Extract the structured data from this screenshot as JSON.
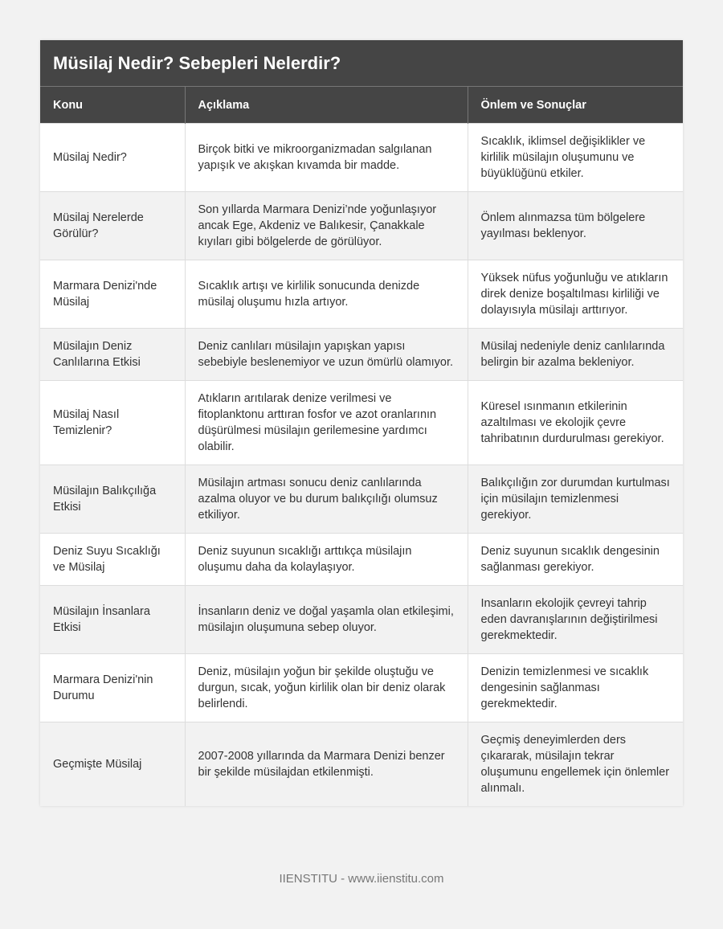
{
  "title": "Müsilaj Nedir? Sebepleri Nelerdir?",
  "columns": [
    "Konu",
    "Açıklama",
    "Önlem ve Sonuçlar"
  ],
  "rows": [
    [
      "Müsilaj Nedir?",
      "Birçok bitki ve mikroorganizmadan salgılanan yapışık ve akışkan kıvamda bir madde.",
      "Sıcaklık, iklimsel değişiklikler ve kirlilik müsilajın oluşumunu ve büyüklüğünü etkiler."
    ],
    [
      "Müsilaj Nerelerde Görülür?",
      "Son yıllarda Marmara Denizi’nde yoğunlaşıyor ancak Ege, Akdeniz ve Balıkesir, Çanakkale kıyıları gibi bölgelerde de görülüyor.",
      "Önlem alınmazsa tüm bölgelere yayılması beklenyor."
    ],
    [
      "Marmara Denizi'nde Müsilaj",
      "Sıcaklık artışı ve kirlilik sonucunda denizde müsilaj oluşumu hızla artıyor.",
      "Yüksek nüfus yoğunluğu ve atıkların direk denize boşaltılması kirliliği ve dolayısıyla müsilajı arttırıyor."
    ],
    [
      "Müsilajın Deniz Canlılarına Etkisi",
      "Deniz canlıları müsilajın yapışkan yapısı sebebiyle beslenemiyor ve uzun ömürlü olamıyor.",
      "Müsilaj nedeniyle deniz canlılarında belirgin bir azalma bekleniyor."
    ],
    [
      "Müsilaj Nasıl Temizlenir?",
      "Atıkların arıtılarak denize verilmesi ve fitoplanktonu arttıran fosfor ve azot oranlarının düşürülmesi müsilajın gerilemesine yardımcı olabilir.",
      "Küresel ısınmanın etkilerinin azaltılması ve ekolojik çevre tahribatının durdurulması gerekiyor."
    ],
    [
      "Müsilajın Balıkçılığa Etkisi",
      "Müsilajın artması sonucu deniz canlılarında azalma oluyor ve bu durum balıkçılığı olumsuz etkiliyor.",
      "Balıkçılığın zor durumdan kurtulması için müsilajın temizlenmesi gerekiyor."
    ],
    [
      "Deniz Suyu Sıcaklığı ve Müsilaj",
      "Deniz suyunun sıcaklığı arttıkça müsilajın oluşumu daha da kolaylaşıyor.",
      "Deniz suyunun sıcaklık dengesinin sağlanması gerekiyor."
    ],
    [
      "Müsilajın İnsanlara Etkisi",
      "İnsanların deniz ve doğal yaşamla olan etkileşimi, müsilajın oluşumuna sebep oluyor.",
      "Insanların ekolojik çevreyi tahrip eden davranışlarının değiştirilmesi gerekmektedir."
    ],
    [
      "Marmara Denizi'nin Durumu",
      "Deniz, müsilajın yoğun bir şekilde oluştuğu ve durgun, sıcak, yoğun kirlilik olan bir deniz olarak belirlendi.",
      "Denizin temizlenmesi ve sıcaklık dengesinin sağlanması gerekmektedir."
    ],
    [
      "Geçmişte Müsilaj",
      "2007-2008 yıllarında da Marmara Denizi benzer bir şekilde müsilajdan etkilenmişti.",
      "Geçmiş deneyimlerden ders çıkararak, müsilajın tekrar oluşumunu engellemek için önlemler alınmalı."
    ]
  ],
  "footer": "IIENSTITU - www.iienstitu.com"
}
